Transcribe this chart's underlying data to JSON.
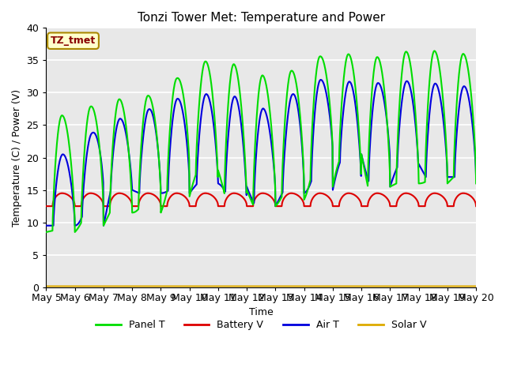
{
  "title": "Tonzi Tower Met: Temperature and Power",
  "xlabel": "Time",
  "ylabel": "Temperature (C) / Power (V)",
  "ylim": [
    0,
    40
  ],
  "annotation": "TZ_tmet",
  "background_color": "#e8e8e8",
  "grid_color": "white",
  "legend": [
    "Panel T",
    "Battery V",
    "Air T",
    "Solar V"
  ],
  "legend_colors": [
    "#00dd00",
    "#dd0000",
    "#0000dd",
    "#ddaa00"
  ],
  "xtick_labels": [
    "May 5",
    "May 6",
    "May 7",
    "May 8",
    "May 9",
    "May 10",
    "May 11",
    "May 12",
    "May 13",
    "May 14",
    "May 15",
    "May 16",
    "May 17",
    "May 18",
    "May 19",
    "May 20"
  ],
  "panel_T_peaks": [
    26.5,
    26.5,
    29.0,
    29.0,
    30.0,
    34.0,
    35.5,
    33.5,
    32.0,
    34.5,
    36.5,
    35.5,
    35.5,
    37.0,
    36.0
  ],
  "panel_T_troughs": [
    8.5,
    9.5,
    11.5,
    11.5,
    14.0,
    18.0,
    15.0,
    12.5,
    13.5,
    15.5,
    20.5,
    15.5,
    16.0,
    16.0,
    17.0
  ],
  "air_T_peaks": [
    20.5,
    20.5,
    26.0,
    26.0,
    28.5,
    29.5,
    30.0,
    29.0,
    26.5,
    32.0,
    32.0,
    31.5,
    31.5,
    32.0,
    31.0
  ],
  "air_T_troughs": [
    9.5,
    9.5,
    15.0,
    14.5,
    14.5,
    16.0,
    15.5,
    12.5,
    14.5,
    15.0,
    20.5,
    15.5,
    19.0,
    17.0,
    17.0
  ],
  "battery_base": 12.5,
  "battery_peak_delta": 2.0,
  "solar_V_val": 0.15,
  "n_days": 15,
  "pts_per_day": 96
}
